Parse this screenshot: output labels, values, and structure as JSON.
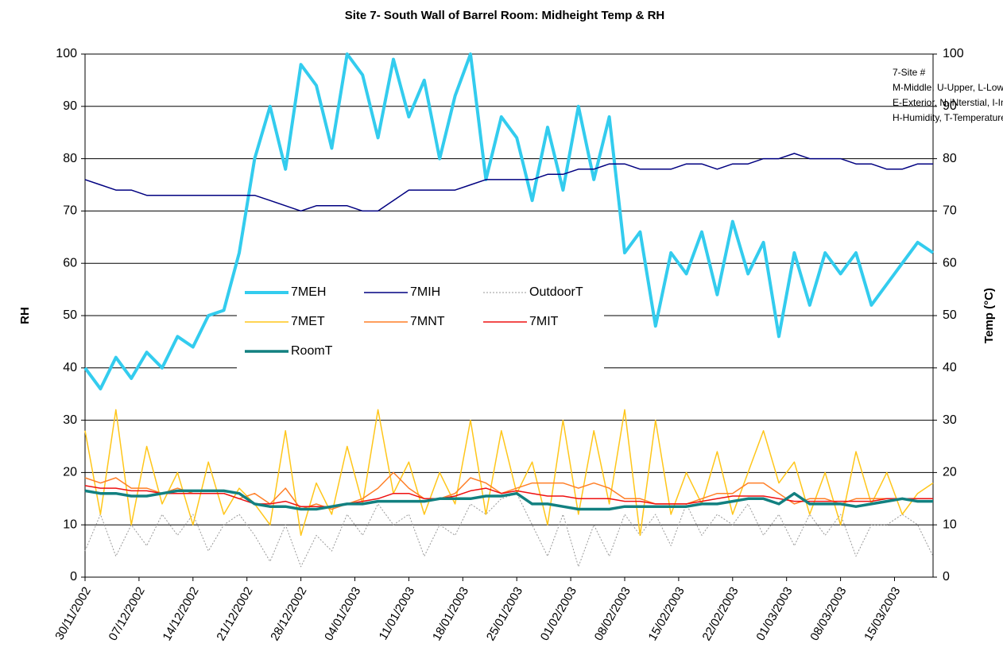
{
  "chart_data": {
    "type": "line",
    "title": "Site 7- South Wall of Barrel Room: Midheight Temp & RH",
    "ylabel": "RH",
    "y2label": "Temp (°C)",
    "annotation": [
      "7-Site #",
      "M-Middle, U-Upper, L-Lower",
      "E-Exterior, N-iNterstial, I-Interior",
      "H-Humidity, T-Temperature"
    ],
    "x": [
      "30/11/2002",
      "02/12/2002",
      "04/12/2002",
      "06/12/2002",
      "08/12/2002",
      "10/12/2002",
      "12/12/2002",
      "14/12/2002",
      "16/12/2002",
      "18/12/2002",
      "20/12/2002",
      "22/12/2002",
      "24/12/2002",
      "26/12/2002",
      "28/12/2002",
      "30/12/2002",
      "01/01/2003",
      "03/01/2003",
      "05/01/2003",
      "07/01/2003",
      "09/01/2003",
      "11/01/2003",
      "13/01/2003",
      "15/01/2003",
      "17/01/2003",
      "19/01/2003",
      "21/01/2003",
      "23/01/2003",
      "25/01/2003",
      "27/01/2003",
      "29/01/2003",
      "31/01/2003",
      "02/02/2003",
      "04/02/2003",
      "06/02/2003",
      "08/02/2003",
      "10/02/2003",
      "12/02/2003",
      "14/02/2003",
      "16/02/2003",
      "18/02/2003",
      "20/02/2003",
      "22/02/2003",
      "24/02/2003",
      "26/02/2003",
      "28/02/2003",
      "02/03/2003",
      "04/03/2003",
      "06/03/2003",
      "08/03/2003",
      "10/03/2003",
      "12/03/2003",
      "14/03/2003",
      "16/03/2003",
      "18/03/2003",
      "20/03/2003"
    ],
    "xlim": [
      "30/11/2002",
      "20/03/2003"
    ],
    "xticks": [
      "30/11/2002",
      "07/12/2002",
      "14/12/2002",
      "21/12/2002",
      "28/12/2002",
      "04/01/2003",
      "11/01/2003",
      "18/01/2003",
      "25/01/2003",
      "01/02/2003",
      "08/02/2003",
      "15/02/2003",
      "22/02/2003",
      "01/03/2003",
      "08/03/2003",
      "15/03/2003"
    ],
    "ylim": [
      0,
      100
    ],
    "yticks": [
      0,
      10,
      20,
      30,
      40,
      50,
      60,
      70,
      80,
      90,
      100
    ],
    "y2lim": [
      0,
      100
    ],
    "y2ticks": [
      0,
      10,
      20,
      30,
      40,
      50,
      60,
      70,
      80,
      90,
      100
    ],
    "grid": true,
    "series": [
      {
        "name": "7MEH",
        "color": "#33ccee",
        "linewidth": 4,
        "values": [
          40,
          36,
          42,
          38,
          43,
          40,
          46,
          44,
          50,
          51,
          62,
          80,
          90,
          78,
          98,
          94,
          82,
          100,
          96,
          84,
          99,
          88,
          95,
          80,
          92,
          100,
          76,
          88,
          84,
          72,
          86,
          74,
          90,
          76,
          88,
          62,
          66,
          48,
          62,
          58,
          66,
          54,
          68,
          58,
          64,
          46,
          62,
          52,
          62,
          58,
          62,
          52,
          56,
          60,
          64,
          62
        ]
      },
      {
        "name": "7MIH",
        "color": "#000080",
        "linewidth": 1.5,
        "values": [
          76,
          75,
          74,
          74,
          73,
          73,
          73,
          73,
          73,
          73,
          73,
          73,
          72,
          71,
          70,
          71,
          71,
          71,
          70,
          70,
          72,
          74,
          74,
          74,
          74,
          75,
          76,
          76,
          76,
          76,
          77,
          77,
          78,
          78,
          79,
          79,
          78,
          78,
          78,
          79,
          79,
          78,
          79,
          79,
          80,
          80,
          81,
          80,
          80,
          80,
          79,
          79,
          78,
          78,
          79,
          79
        ]
      },
      {
        "name": "OutdoorT",
        "color": "#999999",
        "linewidth": 1,
        "dash": "dotted",
        "axis": "y2",
        "values": [
          5,
          12,
          4,
          10,
          6,
          12,
          8,
          12,
          5,
          10,
          12,
          8,
          3,
          10,
          2,
          8,
          5,
          12,
          8,
          14,
          10,
          12,
          4,
          10,
          8,
          14,
          12,
          15,
          16,
          10,
          4,
          12,
          2,
          10,
          4,
          12,
          8,
          12,
          6,
          14,
          8,
          12,
          10,
          14,
          8,
          12,
          6,
          12,
          8,
          12,
          4,
          10,
          10,
          12,
          10,
          4
        ]
      },
      {
        "name": "7MET",
        "color": "#ffc61a",
        "linewidth": 1.5,
        "axis": "y2",
        "values": [
          28,
          12,
          32,
          10,
          25,
          14,
          20,
          10,
          22,
          12,
          17,
          14,
          10,
          28,
          8,
          18,
          12,
          25,
          14,
          32,
          16,
          22,
          12,
          20,
          14,
          30,
          12,
          28,
          16,
          22,
          10,
          30,
          12,
          28,
          14,
          32,
          8,
          30,
          12,
          20,
          14,
          24,
          12,
          20,
          28,
          18,
          22,
          12,
          20,
          10,
          24,
          14,
          20,
          12,
          16,
          18
        ]
      },
      {
        "name": "7MNT",
        "color": "#ff7f27",
        "linewidth": 1.5,
        "axis": "y2",
        "values": [
          19,
          18,
          19,
          17,
          17,
          16,
          17,
          16,
          16,
          16,
          15,
          16,
          14,
          17,
          13,
          14,
          13,
          14,
          15,
          17,
          20,
          17,
          15,
          15,
          16,
          19,
          18,
          16,
          17,
          18,
          18,
          18,
          17,
          18,
          17,
          15,
          15,
          14,
          14,
          14,
          15,
          16,
          16,
          18,
          18,
          16,
          14,
          15,
          15,
          14,
          15,
          15,
          15,
          15,
          15,
          15
        ]
      },
      {
        "name": "7MIT",
        "color": "#ee1111",
        "linewidth": 1.5,
        "axis": "y2",
        "values": [
          17.5,
          17,
          17,
          16.5,
          16.5,
          16,
          16,
          16,
          16,
          16,
          15,
          14,
          14,
          14.5,
          13.5,
          13.5,
          13.5,
          14,
          14.5,
          15,
          16,
          16,
          15,
          15,
          15.5,
          16.5,
          17,
          16,
          16.5,
          16,
          15.5,
          15.5,
          15,
          15,
          15,
          14.5,
          14.5,
          14,
          14,
          14,
          14.5,
          15,
          15.5,
          15.5,
          15.5,
          15,
          14.5,
          14.5,
          14.5,
          14.5,
          14.5,
          14.5,
          15,
          15,
          15,
          15
        ]
      },
      {
        "name": "RoomT",
        "color": "#128080",
        "linewidth": 3.5,
        "axis": "y2",
        "values": [
          16.5,
          16,
          16,
          15.5,
          15.5,
          16,
          16.5,
          16.5,
          16.5,
          16.5,
          16,
          14,
          13.5,
          13.5,
          13,
          13,
          13.5,
          14,
          14,
          14.5,
          14.5,
          14.5,
          14.5,
          15,
          15,
          15,
          15.5,
          15.5,
          16,
          14,
          14,
          13.5,
          13,
          13,
          13,
          13.5,
          13.5,
          13.5,
          13.5,
          13.5,
          14,
          14,
          14.5,
          15,
          15,
          14,
          16,
          14,
          14,
          14,
          13.5,
          14,
          14.5,
          15,
          14.5,
          14.5
        ]
      }
    ]
  }
}
